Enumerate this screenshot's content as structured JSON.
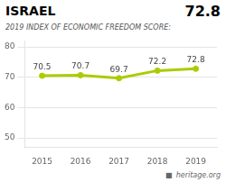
{
  "chart_data": {
    "type": "line",
    "title": "ISRAEL",
    "subtitle": "2019 INDEX OF ECONOMIC FREEDOM SCORE:",
    "annotations": [
      "72.8",
      "■",
      "heritage.org"
    ],
    "x": [
      2015,
      2016,
      2017,
      2018,
      2019
    ],
    "values": [
      70.5,
      70.7,
      69.7,
      72.2,
      72.8
    ],
    "color": "#aacc00",
    "xlim": [
      2014.55,
      2019.55
    ],
    "xticks": [
      2015,
      2016,
      2017,
      2018,
      2019
    ],
    "ylim": [
      47,
      82
    ],
    "yticks": [
      50,
      60,
      70,
      80
    ],
    "grid": true,
    "data_labels": true
  }
}
